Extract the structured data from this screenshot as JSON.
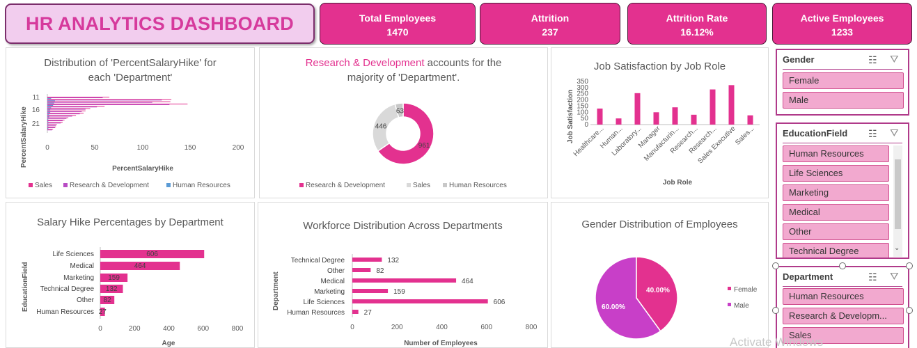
{
  "dashboard": {
    "title": "HR ANALYTICS DASHBOARD"
  },
  "kpis": [
    {
      "label": "Total Employees",
      "value": "1470"
    },
    {
      "label": "Attrition",
      "value": "237"
    },
    {
      "label": "Attrition Rate",
      "value": "16.12%"
    },
    {
      "label": "Active Employees",
      "value": "1233"
    }
  ],
  "colors": {
    "accent": "#e3318f",
    "purple": "#b84cc4",
    "light_pink": "#f2a9cf",
    "title_bg": "#f2cdee",
    "sky": "#5b9bd5",
    "grey": "#d9d9d9"
  },
  "chart1": {
    "title_line1": "Distribution of 'PercentSalaryHike' for",
    "title_line2": "each 'Department'",
    "ylabel": "PercentSalaryHike",
    "xlabel": "PercentSalaryHike",
    "yticks": [
      "11",
      "16",
      "21"
    ],
    "xticks": [
      "0",
      "50",
      "100",
      "150",
      "200"
    ],
    "legend": [
      "Sales",
      "Research & Development",
      "Human Resources"
    ]
  },
  "chart2": {
    "title_highlight": "Research & Development",
    "title_rest": " accounts for the",
    "title_line2": "majority of 'Department'.",
    "values": [
      "961",
      "446",
      "63"
    ],
    "legend": [
      "Research & Development",
      "Sales",
      "Human Resources"
    ]
  },
  "chart3": {
    "title": "Job Satisfaction by Job Role",
    "ylabel": "Job Satisfaction",
    "xlabel": "Job Role",
    "yticks": [
      "0",
      "50",
      "100",
      "150",
      "200",
      "250",
      "300",
      "350"
    ],
    "categories": [
      "Healthcare...",
      "Human...",
      "Laboratory...",
      "Manager",
      "Manufacturin...",
      "Research...",
      "Research...",
      "Sales Executive",
      "Sales..."
    ]
  },
  "chart4": {
    "title": "Salary Hike Percentages by Department",
    "ylabel": "EducationField",
    "xlabel": "Age",
    "xticks": [
      "0",
      "200",
      "400",
      "600",
      "800"
    ]
  },
  "chart5": {
    "title": "Workforce Distribution Across Departments",
    "ylabel": "Department",
    "xlabel": "Number of Employees",
    "xticks": [
      "0",
      "200",
      "400",
      "600",
      "800"
    ]
  },
  "chart6": {
    "title": "Gender Distribution of Employees",
    "female_label": "40.00%",
    "male_label": "60.00%",
    "legend": [
      "Female",
      "Male"
    ]
  },
  "chart_data": [
    {
      "type": "bar",
      "title": "Distribution of 'PercentSalaryHike' for each 'Department'",
      "xlabel": "PercentSalaryHike",
      "ylabel": "PercentSalaryHike",
      "orientation": "horizontal",
      "xlim": [
        0,
        200
      ],
      "categories": [
        "11",
        "12",
        "13",
        "14",
        "15",
        "16",
        "17",
        "18",
        "19",
        "20",
        "21",
        "22",
        "23",
        "24",
        "25"
      ],
      "series": [
        {
          "name": "Sales",
          "color": "#e3318f",
          "values": [
            65,
            130,
            129,
            147,
            60,
            45,
            40,
            38,
            30,
            22,
            18,
            16,
            10,
            9,
            6
          ]
        },
        {
          "name": "Research & Development",
          "color": "#b84cc4",
          "values": [
            58,
            120,
            110,
            128,
            52,
            40,
            36,
            34,
            26,
            20,
            16,
            14,
            9,
            8,
            5
          ]
        },
        {
          "name": "Human Resources",
          "color": "#5b9bd5",
          "values": [
            4,
            8,
            7,
            6,
            4,
            3,
            3,
            2,
            2,
            1,
            1,
            1,
            1,
            1,
            0
          ]
        }
      ]
    },
    {
      "type": "pie",
      "title": "Research & Development accounts for the majority of 'Department'.",
      "categories": [
        "Research & Development",
        "Sales",
        "Human Resources"
      ],
      "values": [
        961,
        446,
        63
      ],
      "colors": [
        "#e3318f",
        "#d9d9d9",
        "#c8c8c8"
      ]
    },
    {
      "type": "bar",
      "title": "Job Satisfaction by Job Role",
      "xlabel": "Job Role",
      "ylabel": "Job Satisfaction",
      "ylim": [
        0,
        350
      ],
      "categories": [
        "Healthcare...",
        "Human...",
        "Laboratory...",
        "Manager",
        "Manufacturin...",
        "Research...",
        "Research...",
        "Sales Executive",
        "Sales..."
      ],
      "values": [
        130,
        50,
        255,
        100,
        140,
        80,
        285,
        320,
        75
      ]
    },
    {
      "type": "bar",
      "title": "Salary Hike Percentages by Department",
      "xlabel": "Age",
      "ylabel": "EducationField",
      "orientation": "horizontal",
      "xlim": [
        0,
        800
      ],
      "categories": [
        "Life Sciences",
        "Medical",
        "Marketing",
        "Technical Degree",
        "Other",
        "Human Resources"
      ],
      "values": [
        606,
        464,
        159,
        132,
        82,
        27
      ]
    },
    {
      "type": "bar",
      "title": "Workforce Distribution Across Departments",
      "xlabel": "Number of Employees",
      "ylabel": "Department",
      "orientation": "horizontal",
      "xlim": [
        0,
        800
      ],
      "categories": [
        "Technical Degree",
        "Other",
        "Medical",
        "Marketing",
        "Life Sciences",
        "Human Resources"
      ],
      "values": [
        132,
        82,
        464,
        159,
        606,
        27
      ]
    },
    {
      "type": "pie",
      "title": "Gender Distribution of Employees",
      "categories": [
        "Female",
        "Male"
      ],
      "values": [
        40.0,
        60.0
      ],
      "colors": [
        "#e3318f",
        "#c83fc8"
      ]
    }
  ],
  "slicers": {
    "gender": {
      "title": "Gender",
      "items": [
        "Female",
        "Male"
      ]
    },
    "education": {
      "title": "EducationField",
      "items": [
        "Human Resources",
        "Life Sciences",
        "Marketing",
        "Medical",
        "Other",
        "Technical Degree"
      ]
    },
    "department": {
      "title": "Department",
      "items": [
        "Human Resources",
        "Research & Developm...",
        "Sales"
      ]
    }
  },
  "watermark": "Activate Windows"
}
